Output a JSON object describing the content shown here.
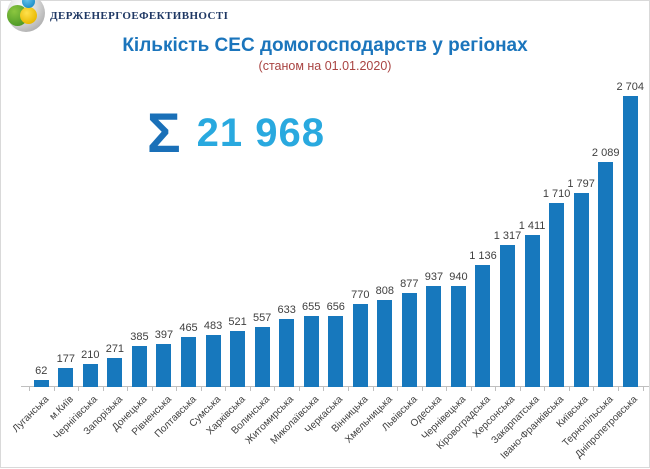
{
  "logo": {
    "org_name": "Держенергоефективності"
  },
  "header": {
    "title": "Кількість СЕС домогосподарств у регіонах",
    "subtitle": "(станом на 01.01.2020)"
  },
  "summary": {
    "sigma_symbol": "Σ",
    "total_label": "21 968"
  },
  "chart_data": {
    "type": "bar",
    "title": "Кількість СЕС домогосподарств у регіонах",
    "subtitle": "(станом на 01.01.2020)",
    "total": 21968,
    "categories": [
      "Луганська",
      "м.Київ",
      "Чернігівська",
      "Запорізька",
      "Донецька",
      "Рівненська",
      "Полтавська",
      "Сумська",
      "Харківська",
      "Волинська",
      "Житомирська",
      "Миколаївська",
      "Черкаська",
      "Вінницька",
      "Хмельницька",
      "Львівська",
      "Одеська",
      "Чернівецька",
      "Кіровоградська",
      "Херсонська",
      "Закарпатська",
      "Івано-Франківська",
      "Київська",
      "Тернопільська",
      "Дніпропетровська"
    ],
    "values": [
      62,
      177,
      210,
      271,
      385,
      397,
      465,
      483,
      521,
      557,
      633,
      655,
      656,
      770,
      808,
      877,
      937,
      940,
      1136,
      1317,
      1411,
      1710,
      1797,
      2089,
      2704
    ],
    "value_labels": [
      "62",
      "177",
      "210",
      "271",
      "385",
      "397",
      "465",
      "483",
      "521",
      "557",
      "633",
      "655",
      "656",
      "770",
      "808",
      "877",
      "937",
      "940",
      "1 136",
      "1 317",
      "1 411",
      "1 710",
      "1 797",
      "2 089",
      "2 704"
    ],
    "xlabel": "",
    "ylabel": "",
    "ylim": [
      0,
      2800
    ],
    "grid": false,
    "legend": false,
    "bar_color": "#1778bd",
    "data_label_color": "#404040",
    "axis_color": "#bfbfbf"
  },
  "colors": {
    "title_blue": "#1b75bc",
    "subtitle_red": "#a94442",
    "sum_number_blue": "#29a9df",
    "sigma_blue": "#1a70b8",
    "logo_navy": "#1f3864"
  }
}
